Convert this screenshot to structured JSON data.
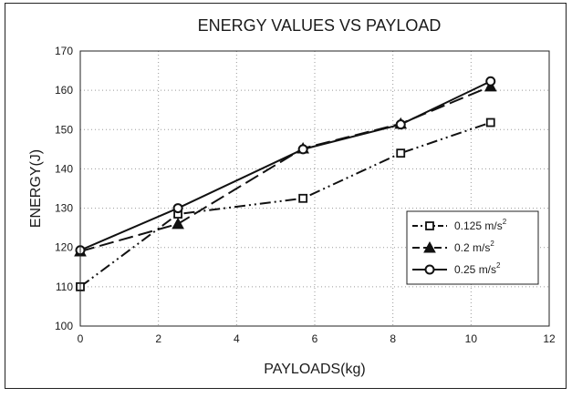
{
  "chart_data": {
    "type": "line",
    "title": "ENERGY VALUES VS PAYLOAD",
    "xlabel": "PAYLOADS(kg)",
    "ylabel": "ENERGY(J)",
    "xlim": [
      0,
      12
    ],
    "ylim": [
      100,
      170
    ],
    "xticks": [
      0,
      2,
      4,
      6,
      8,
      10,
      12
    ],
    "yticks": [
      100,
      110,
      120,
      130,
      140,
      150,
      160,
      170
    ],
    "grid": true,
    "legend_position": "right",
    "series": [
      {
        "name": "0.125 m/s",
        "name_sup": "2",
        "marker": "square",
        "line_style": "dash-dot-dot",
        "x": [
          0,
          2.5,
          5.7,
          8.2,
          10.5
        ],
        "y": [
          110,
          128.5,
          132.5,
          144,
          151.8
        ]
      },
      {
        "name": "0.2 m/s",
        "name_sup": "2",
        "marker": "triangle",
        "line_style": "dashed",
        "x": [
          0,
          2.5,
          5.7,
          8.2,
          10.5
        ],
        "y": [
          119,
          126,
          145.2,
          151.5,
          161
        ]
      },
      {
        "name": "0.25 m/s",
        "name_sup": "2",
        "marker": "circle",
        "line_style": "solid",
        "x": [
          0,
          2.5,
          5.7,
          8.2,
          10.5
        ],
        "y": [
          119.3,
          130,
          145,
          151.3,
          162.3
        ]
      }
    ]
  }
}
